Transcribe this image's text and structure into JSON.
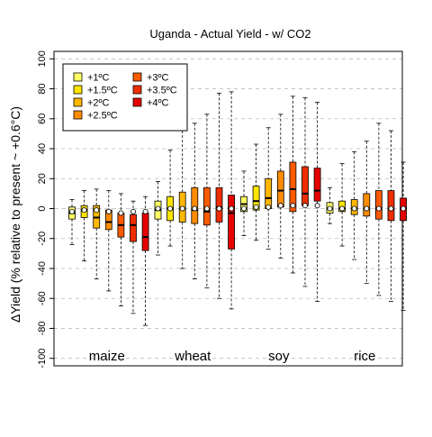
{
  "chart_data": {
    "type": "boxplot",
    "title": "Uganda - Actual Yield - w/ CO2",
    "ylabel": "ΔYield (% relative to present ~ +0.6°C)",
    "xlabel": "",
    "ylim": [
      -105,
      105
    ],
    "yticks": [
      -100,
      -80,
      -60,
      -40,
      -20,
      0,
      20,
      40,
      60,
      80,
      100
    ],
    "grid": "horizontal-dashed",
    "legend_position": "top-left",
    "scenarios": [
      {
        "label": "+1ºC",
        "color": "#ffff66"
      },
      {
        "label": "+1.5ºC",
        "color": "#ffe500"
      },
      {
        "label": "+2ºC",
        "color": "#ffb700"
      },
      {
        "label": "+2.5ºC",
        "color": "#ff8c00"
      },
      {
        "label": "+3ºC",
        "color": "#ff5a00"
      },
      {
        "label": "+3.5ºC",
        "color": "#f02d00"
      },
      {
        "label": "+4ºC",
        "color": "#e60000"
      }
    ],
    "crops": [
      {
        "name": "maize",
        "boxes": [
          {
            "min": -24,
            "q1": -7,
            "median": -3,
            "q3": 1,
            "max": 6,
            "mean": -2
          },
          {
            "min": -35,
            "q1": -6,
            "median": -1,
            "q3": 2,
            "max": 12,
            "mean": -1
          },
          {
            "min": -47,
            "q1": -13,
            "median": -6,
            "q3": 2,
            "max": 13,
            "mean": -1
          },
          {
            "min": -55,
            "q1": -14,
            "median": -9,
            "q3": -1,
            "max": 12,
            "mean": -2
          },
          {
            "min": -65,
            "q1": -19,
            "median": -11,
            "q3": -3,
            "max": 10,
            "mean": -3
          },
          {
            "min": -70,
            "q1": -22,
            "median": -11,
            "q3": -4,
            "max": 5,
            "mean": -2
          },
          {
            "min": -78,
            "q1": -28,
            "median": -19,
            "q3": -3,
            "max": 8,
            "mean": -2
          }
        ]
      },
      {
        "name": "wheat",
        "boxes": [
          {
            "min": -31,
            "q1": -7,
            "median": -1,
            "q3": 5,
            "max": 18,
            "mean": 0
          },
          {
            "min": -25,
            "q1": -8,
            "median": 0,
            "q3": 8,
            "max": 39,
            "mean": 0
          },
          {
            "min": -40,
            "q1": -9,
            "median": 0,
            "q3": 11,
            "max": 52,
            "mean": 0
          },
          {
            "min": -47,
            "q1": -10,
            "median": -1,
            "q3": 14,
            "max": 57,
            "mean": 0
          },
          {
            "min": -53,
            "q1": -11,
            "median": -2,
            "q3": 14,
            "max": 63,
            "mean": 0
          },
          {
            "min": -60,
            "q1": -9,
            "median": 1,
            "q3": 14,
            "max": 77,
            "mean": 0
          },
          {
            "min": -67,
            "q1": -27,
            "median": -3,
            "q3": 9,
            "max": 78,
            "mean": 0
          }
        ]
      },
      {
        "name": "soy",
        "boxes": [
          {
            "min": -18,
            "q1": -2,
            "median": 3,
            "q3": 8,
            "max": 25,
            "mean": 0
          },
          {
            "min": -21,
            "q1": -1,
            "median": 5,
            "q3": 15,
            "max": 43,
            "mean": 1
          },
          {
            "min": -27,
            "q1": 0,
            "median": 7,
            "q3": 20,
            "max": 54,
            "mean": 1
          },
          {
            "min": -33,
            "q1": 1,
            "median": 12,
            "q3": 25,
            "max": 63,
            "mean": 2
          },
          {
            "min": -43,
            "q1": -2,
            "median": 13,
            "q3": 31,
            "max": 75,
            "mean": 2
          },
          {
            "min": -52,
            "q1": 2,
            "median": 10,
            "q3": 28,
            "max": 74,
            "mean": 2
          },
          {
            "min": -62,
            "q1": 5,
            "median": 12,
            "q3": 27,
            "max": 71,
            "mean": 2
          }
        ]
      },
      {
        "name": "rice",
        "boxes": [
          {
            "min": -10,
            "q1": -3,
            "median": 0,
            "q3": 4,
            "max": 14,
            "mean": 0
          },
          {
            "min": -25,
            "q1": -2,
            "median": 0,
            "q3": 5,
            "max": 30,
            "mean": 0
          },
          {
            "min": -34,
            "q1": -4,
            "median": 0,
            "q3": 6,
            "max": 38,
            "mean": 0
          },
          {
            "min": -50,
            "q1": -5,
            "median": 0,
            "q3": 10,
            "max": 45,
            "mean": 0
          },
          {
            "min": -58,
            "q1": -7,
            "median": 0,
            "q3": 12,
            "max": 57,
            "mean": 0
          },
          {
            "min": -62,
            "q1": -8,
            "median": 0,
            "q3": 12,
            "max": 52,
            "mean": 0
          },
          {
            "min": -68,
            "q1": -8,
            "median": 0,
            "q3": 7,
            "max": 31,
            "mean": 0
          }
        ]
      }
    ]
  }
}
